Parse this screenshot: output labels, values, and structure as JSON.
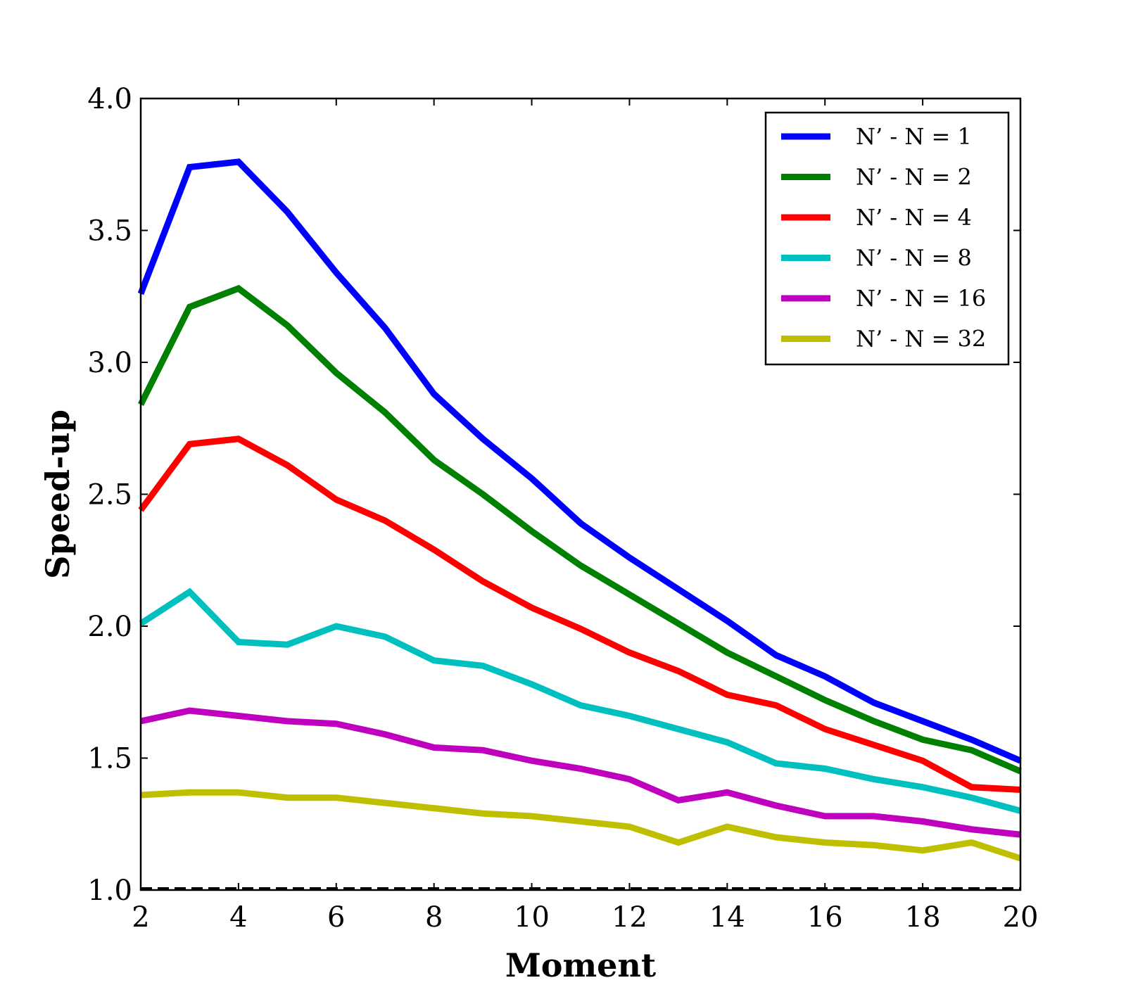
{
  "chart_data": {
    "type": "line",
    "title": "",
    "xlabel": "Moment",
    "ylabel": "Speed-up",
    "xlim": [
      2,
      20
    ],
    "ylim": [
      1.0,
      4.0
    ],
    "xticks": [
      "2",
      "4",
      "6",
      "8",
      "10",
      "12",
      "14",
      "16",
      "18",
      "20"
    ],
    "yticks": [
      "1.0",
      "1.5",
      "2.0",
      "2.5",
      "3.0",
      "3.5",
      "4.0"
    ],
    "legend_position": "top-right",
    "x": [
      2,
      3,
      4,
      5,
      6,
      7,
      8,
      9,
      10,
      11,
      12,
      13,
      14,
      15,
      16,
      17,
      18,
      19,
      20
    ],
    "baseline": {
      "value": 1.0,
      "style": "dashed",
      "color": "#000000"
    },
    "series": [
      {
        "name": "N’ - N = 1",
        "color": "#0000ff",
        "values": [
          3.26,
          3.74,
          3.76,
          3.57,
          3.34,
          3.13,
          2.88,
          2.71,
          2.56,
          2.39,
          2.26,
          2.14,
          2.02,
          1.89,
          1.81,
          1.71,
          1.64,
          1.57,
          1.49
        ]
      },
      {
        "name": "N’ - N = 2",
        "color": "#008000",
        "values": [
          2.84,
          3.21,
          3.28,
          3.14,
          2.96,
          2.81,
          2.63,
          2.5,
          2.36,
          2.23,
          2.12,
          2.01,
          1.9,
          1.81,
          1.72,
          1.64,
          1.57,
          1.53,
          1.45
        ]
      },
      {
        "name": "N’ - N = 4",
        "color": "#ff0000",
        "values": [
          2.44,
          2.69,
          2.71,
          2.61,
          2.48,
          2.4,
          2.29,
          2.17,
          2.07,
          1.99,
          1.9,
          1.83,
          1.74,
          1.7,
          1.61,
          1.55,
          1.49,
          1.39,
          1.38
        ]
      },
      {
        "name": "N’ - N = 8",
        "color": "#00bfbf",
        "values": [
          2.01,
          2.13,
          1.94,
          1.93,
          2.0,
          1.96,
          1.87,
          1.85,
          1.78,
          1.7,
          1.66,
          1.61,
          1.56,
          1.48,
          1.46,
          1.42,
          1.39,
          1.35,
          1.3
        ]
      },
      {
        "name": "N’ - N = 16",
        "color": "#bf00bf",
        "values": [
          1.64,
          1.68,
          1.66,
          1.64,
          1.63,
          1.59,
          1.54,
          1.53,
          1.49,
          1.46,
          1.42,
          1.34,
          1.37,
          1.32,
          1.28,
          1.28,
          1.26,
          1.23,
          1.21
        ]
      },
      {
        "name": "N’ - N = 32",
        "color": "#bfbf00",
        "values": [
          1.36,
          1.37,
          1.37,
          1.35,
          1.35,
          1.33,
          1.31,
          1.29,
          1.28,
          1.26,
          1.24,
          1.18,
          1.24,
          1.2,
          1.18,
          1.17,
          1.15,
          1.18,
          1.12
        ]
      }
    ]
  }
}
